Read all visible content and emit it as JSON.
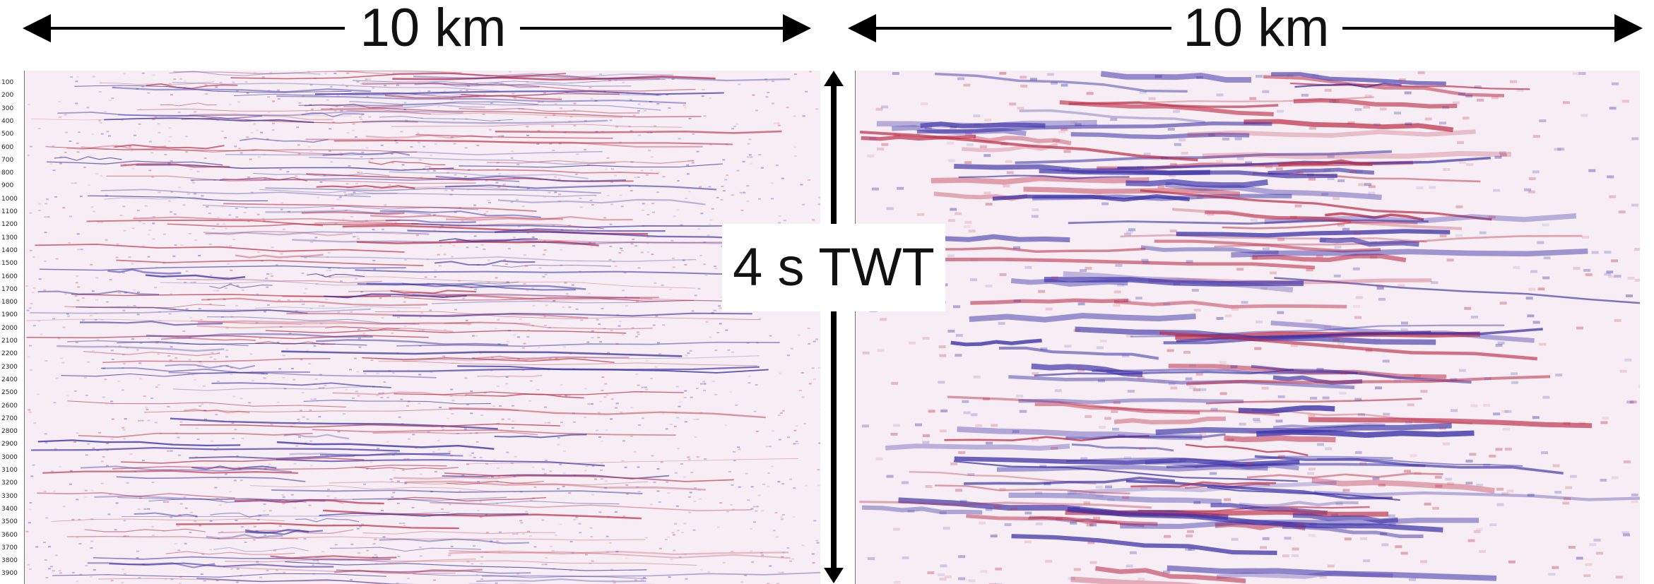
{
  "left_panel": {
    "scale_label": "10 km"
  },
  "right_panel": {
    "scale_label": "10 km"
  },
  "time_label": "4 s TWT",
  "depth_ticks": [
    "100",
    "200",
    "300",
    "400",
    "500",
    "600",
    "700",
    "800",
    "900",
    "1000",
    "1100",
    "1200",
    "1300",
    "1400",
    "1500",
    "1600",
    "1700",
    "1800",
    "1900",
    "2000",
    "2100",
    "2200",
    "2300",
    "2400",
    "2500",
    "2600",
    "2700",
    "2800",
    "2900",
    "3000",
    "3100",
    "3200",
    "3300",
    "3400",
    "3500",
    "3600",
    "3700",
    "3800",
    "3900"
  ],
  "colors": {
    "positive": "#c0304a",
    "negative": "#3a2fa8",
    "background": "#f6eef4"
  }
}
